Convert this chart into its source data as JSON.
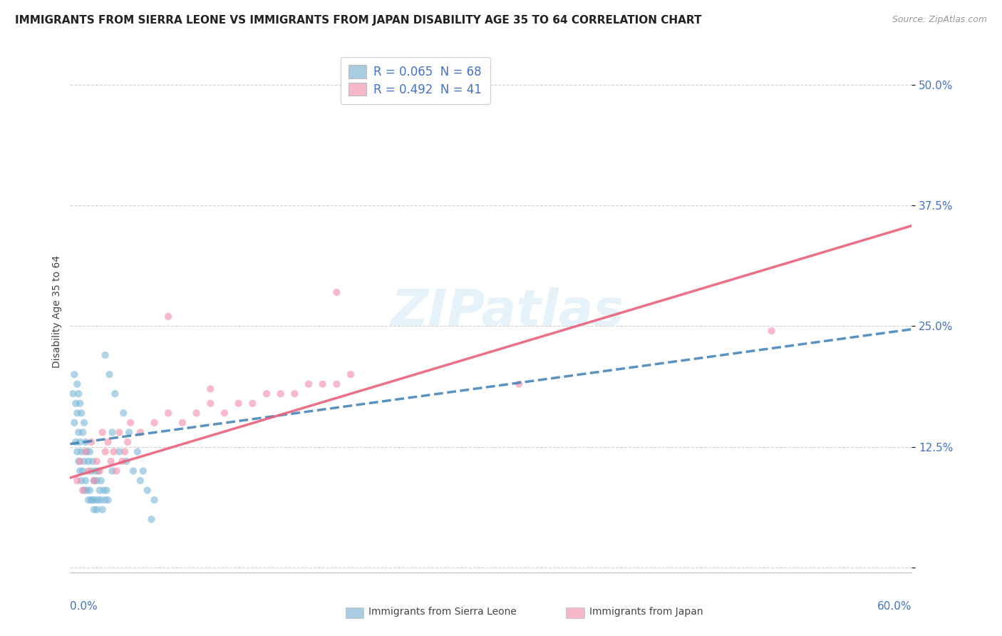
{
  "title": "IMMIGRANTS FROM SIERRA LEONE VS IMMIGRANTS FROM JAPAN DISABILITY AGE 35 TO 64 CORRELATION CHART",
  "source": "Source: ZipAtlas.com",
  "ylabel": "Disability Age 35 to 64",
  "ytick_values": [
    0.0,
    0.125,
    0.25,
    0.375,
    0.5
  ],
  "ytick_labels": [
    "",
    "12.5%",
    "25.0%",
    "37.5%",
    "50.0%"
  ],
  "xlim": [
    0.0,
    0.6
  ],
  "ylim": [
    -0.005,
    0.535
  ],
  "watermark": "ZIPatlas",
  "sierra_leone_label": "R = 0.065  N = 68",
  "japan_label": "R = 0.492  N = 41",
  "sierra_leone_dot_color": "#7ab8d9",
  "japan_dot_color": "#f48ca8",
  "sierra_leone_patch_color": "#a8cce0",
  "japan_patch_color": "#f5b8c8",
  "sierra_leone_line_color": "#3d7fb5",
  "japan_line_color": "#e8607a",
  "legend_text_color": "#4472c4",
  "tick_color": "#4472c4",
  "background_color": "#ffffff",
  "grid_color": "#cccccc",
  "title_fontsize": 11,
  "axis_label_fontsize": 10,
  "tick_fontsize": 11,
  "sl_line_intercept": 0.128,
  "sl_line_slope": 0.198,
  "jp_line_intercept": 0.093,
  "jp_line_slope": 0.435
}
